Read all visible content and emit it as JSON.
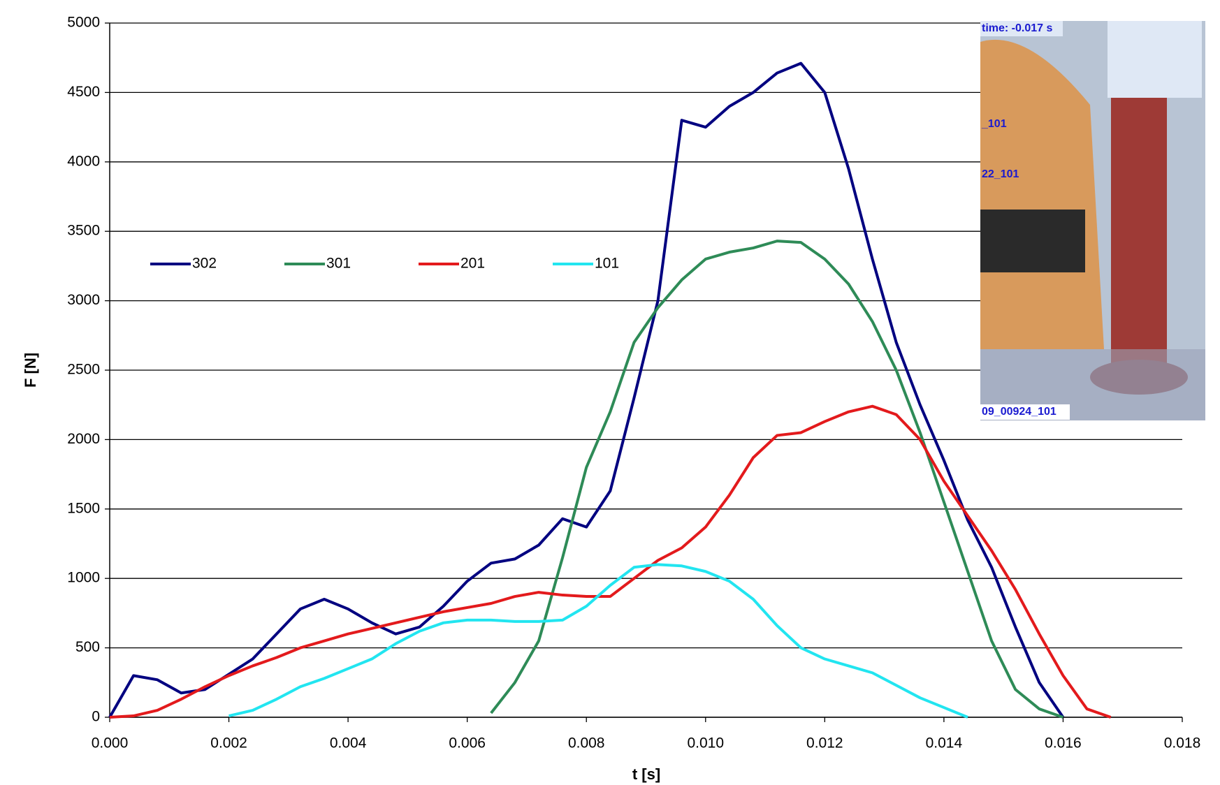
{
  "chart_data": {
    "type": "line",
    "xlabel": "t [s]",
    "ylabel": "F [N]",
    "x": [
      0,
      0.0004,
      0.0008,
      0.0012,
      0.0016,
      0.002,
      0.0024,
      0.0028,
      0.0032,
      0.0036,
      0.004,
      0.0044,
      0.0048,
      0.0052,
      0.0056,
      0.006,
      0.0064,
      0.0068,
      0.0072,
      0.0076,
      0.008,
      0.0084,
      0.0088,
      0.0092,
      0.0096,
      0.01,
      0.0104,
      0.0108,
      0.0112,
      0.0116,
      0.012,
      0.0124,
      0.0128,
      0.0132,
      0.0136,
      0.014,
      0.0144,
      0.0148,
      0.0152,
      0.0156,
      0.016,
      0.0164,
      0.0168
    ],
    "series": [
      {
        "name": "302",
        "color": "#000080",
        "values": [
          0,
          300,
          270,
          175,
          200,
          310,
          420,
          600,
          780,
          850,
          780,
          680,
          600,
          650,
          800,
          980,
          1110,
          1140,
          1240,
          1430,
          1370,
          1630,
          2300,
          3000,
          4300,
          4250,
          4400,
          4500,
          4640,
          4710,
          4500,
          3950,
          3300,
          2700,
          2250,
          1850,
          1420,
          1080,
          650,
          250,
          0,
          null,
          null
        ]
      },
      {
        "name": "301",
        "color": "#2e8b57",
        "values": [
          null,
          null,
          null,
          null,
          null,
          null,
          null,
          null,
          null,
          null,
          null,
          null,
          null,
          null,
          null,
          null,
          30,
          250,
          550,
          1150,
          1800,
          2200,
          2700,
          2950,
          3150,
          3300,
          3350,
          3380,
          3430,
          3420,
          3300,
          3120,
          2850,
          2500,
          2050,
          1550,
          1050,
          550,
          200,
          60,
          0,
          null,
          null
        ]
      },
      {
        "name": "201",
        "color": "#e31a1c",
        "values": [
          0,
          10,
          50,
          130,
          220,
          300,
          370,
          430,
          500,
          550,
          600,
          640,
          680,
          720,
          760,
          790,
          820,
          870,
          900,
          880,
          870,
          870,
          1000,
          1130,
          1220,
          1370,
          1600,
          1870,
          2030,
          2050,
          2130,
          2200,
          2240,
          2180,
          2000,
          1700,
          1450,
          1200,
          920,
          600,
          300,
          60,
          0
        ]
      },
      {
        "name": "101",
        "color": "#22e5f0",
        "values": [
          null,
          null,
          null,
          null,
          null,
          10,
          50,
          130,
          220,
          280,
          350,
          420,
          530,
          620,
          680,
          700,
          700,
          690,
          690,
          700,
          800,
          950,
          1080,
          1100,
          1090,
          1050,
          980,
          850,
          660,
          500,
          420,
          370,
          320,
          230,
          140,
          70,
          0,
          null,
          null,
          null,
          null,
          null,
          null
        ]
      }
    ],
    "xlim": [
      0,
      0.018
    ],
    "xticks": [
      {
        "value": 0,
        "label": "0.000"
      },
      {
        "value": 0.002,
        "label": "0.002"
      },
      {
        "value": 0.004,
        "label": "0.004"
      },
      {
        "value": 0.006,
        "label": "0.006"
      },
      {
        "value": 0.008,
        "label": "0.008"
      },
      {
        "value": 0.01,
        "label": "0.010"
      },
      {
        "value": 0.012,
        "label": "0.012"
      },
      {
        "value": 0.014,
        "label": "0.014"
      },
      {
        "value": 0.016,
        "label": "0.016"
      },
      {
        "value": 0.018,
        "label": "0.018"
      }
    ],
    "ylim": [
      0,
      5000
    ],
    "yticks": [
      0,
      500,
      1000,
      1500,
      2000,
      2500,
      3000,
      3500,
      4000,
      4500,
      5000
    ],
    "grid": true,
    "legend": "upper left",
    "annotations": [
      "time: -0.017 s",
      "_101",
      "22_101",
      "09_00924_101"
    ]
  }
}
